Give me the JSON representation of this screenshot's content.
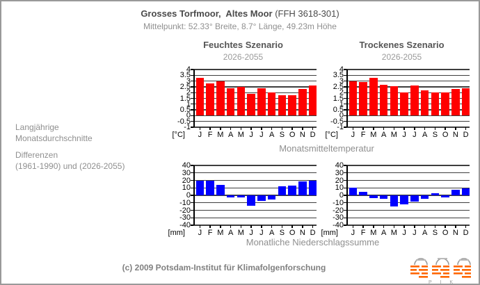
{
  "header": {
    "title": "Grosses Torfmoor,  Altes Moor",
    "title_suffix": " (FFH 3618-301)",
    "subtitle": "Mittelpunkt: 52.33° Breite, 8.7° Länge, 49.23m Höhe"
  },
  "columns": [
    {
      "title": "Feuchtes Szenario",
      "subtitle": "2026-2055"
    },
    {
      "title": "Trockenes Szenario",
      "subtitle": "2026-2055"
    }
  ],
  "left_labels": {
    "line1": "Langjährige",
    "line2": "Monatsdurchschnitte",
    "line3": "Differenzen",
    "line4": "(1961-1990) und (2026-2055)"
  },
  "row_labels": {
    "temperature": "Monatsmitteltemperatur",
    "precipitation": "Monatliche Niederschlagssumme"
  },
  "footer": {
    "copyright": "(c) 2009 Potsdam-Institut für Klimafolgenforschung",
    "logo_text": "P I K"
  },
  "colors": {
    "temp_bar": "#ff0000",
    "precip_bar": "#0000ff",
    "grid": "#3d3d3d",
    "muted_text": "#8f8f8f",
    "logo_orange": "#ff6600"
  },
  "chart_data": [
    {
      "id": "feuchtes-temperatur",
      "type": "bar",
      "title": "Feuchtes Szenario 2026-2055 Monatsmitteltemperatur",
      "unit": "[°C]",
      "categories": [
        "J",
        "F",
        "M",
        "A",
        "M",
        "J",
        "J",
        "A",
        "S",
        "O",
        "N",
        "D"
      ],
      "values": [
        3.3,
        2.8,
        3.0,
        2.35,
        2.5,
        1.9,
        2.35,
        2.0,
        1.8,
        1.75,
        2.3,
        2.6
      ],
      "ylim": [
        -1,
        4
      ],
      "yticks": [
        "4",
        "3.5",
        "3",
        "2.5",
        "2",
        "1.5",
        "1",
        "0.5",
        "0",
        "-0.5",
        "-1"
      ],
      "bar_color": "#ff0000",
      "grid": true
    },
    {
      "id": "trockenes-temperatur",
      "type": "bar",
      "title": "Trockenes Szenario 2026-2055 Monatsmitteltemperatur",
      "unit": "[°C]",
      "categories": [
        "J",
        "F",
        "M",
        "A",
        "M",
        "J",
        "J",
        "A",
        "S",
        "O",
        "N",
        "D"
      ],
      "values": [
        3.0,
        2.9,
        3.25,
        2.65,
        2.55,
        2.0,
        2.6,
        2.2,
        2.0,
        2.0,
        2.3,
        2.4
      ],
      "ylim": [
        -1,
        4
      ],
      "yticks": [
        "4",
        "3.5",
        "3",
        "2.5",
        "2",
        "1.5",
        "1",
        "0.5",
        "0",
        "-0.5",
        "-1"
      ],
      "bar_color": "#ff0000",
      "grid": true
    },
    {
      "id": "feuchtes-niederschlag",
      "type": "bar",
      "title": "Feuchtes Szenario 2026-2055 Monatliche Niederschlagssumme",
      "unit": "[mm]",
      "categories": [
        "J",
        "F",
        "M",
        "A",
        "M",
        "J",
        "J",
        "A",
        "S",
        "O",
        "N",
        "D"
      ],
      "values": [
        20,
        20,
        14,
        -3,
        -3,
        -14,
        -7,
        -6,
        12,
        13,
        19,
        20
      ],
      "ylim": [
        -40,
        40
      ],
      "yticks": [
        "40",
        "30",
        "20",
        "10",
        "0",
        "-10",
        "-20",
        "-30",
        "-40"
      ],
      "bar_color": "#0000ff",
      "grid": true
    },
    {
      "id": "trockenes-niederschlag",
      "type": "bar",
      "title": "Trockenes Szenario 2026-2055 Monatliche Niederschlagssumme",
      "unit": "[mm]",
      "categories": [
        "J",
        "F",
        "M",
        "A",
        "M",
        "J",
        "J",
        "A",
        "S",
        "O",
        "N",
        "D"
      ],
      "values": [
        10,
        5,
        -4,
        -5,
        -15,
        -12,
        -8,
        -5,
        3,
        -3,
        7,
        9
      ],
      "ylim": [
        -40,
        40
      ],
      "yticks": [
        "40",
        "30",
        "20",
        "10",
        "0",
        "-10",
        "-20",
        "-30",
        "-40"
      ],
      "bar_color": "#0000ff",
      "grid": true
    }
  ]
}
